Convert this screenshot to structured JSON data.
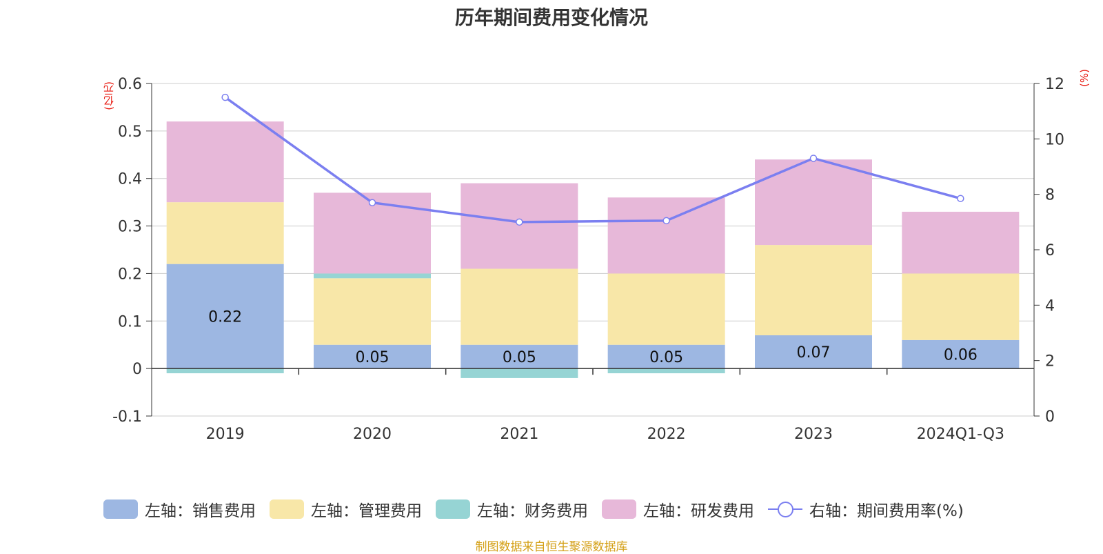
{
  "chart_data": {
    "type": "bar",
    "title": "历年期间费用变化情况",
    "categories": [
      "2019",
      "2020",
      "2021",
      "2022",
      "2023",
      "2024Q1-Q3"
    ],
    "series": [
      {
        "name": "左轴：销售费用",
        "axis": "left",
        "stack": true,
        "color": "#9db7e2",
        "values": [
          0.22,
          0.05,
          0.05,
          0.05,
          0.07,
          0.06
        ],
        "data_labels": [
          "0.22",
          "0.05",
          "0.05",
          "0.05",
          "0.07",
          "0.06"
        ]
      },
      {
        "name": "左轴：管理费用",
        "axis": "left",
        "stack": true,
        "color": "#f8e7a8",
        "values": [
          0.13,
          0.14,
          0.16,
          0.15,
          0.19,
          0.14
        ]
      },
      {
        "name": "左轴：财务费用",
        "axis": "left",
        "stack": true,
        "color": "#96d4d4",
        "values": [
          -0.01,
          0.01,
          -0.02,
          -0.01,
          0.0,
          0.0
        ]
      },
      {
        "name": "左轴：研发费用",
        "axis": "left",
        "stack": true,
        "color": "#e7b8d9",
        "values": [
          0.17,
          0.17,
          0.18,
          0.16,
          0.18,
          0.13
        ]
      },
      {
        "name": "右轴：期间费用率(%)",
        "axis": "right",
        "type": "line",
        "color": "#7b7ff0",
        "values": [
          11.5,
          7.7,
          7.0,
          7.05,
          9.3,
          7.85
        ]
      }
    ],
    "y_left": {
      "unit": "(亿元)",
      "ylim": [
        -0.1,
        0.6
      ],
      "ticks": [
        "-0.1",
        "0",
        "0.1",
        "0.2",
        "0.3",
        "0.4",
        "0.5",
        "0.6"
      ]
    },
    "y_right": {
      "unit": "(%)",
      "ylim": [
        0,
        12
      ],
      "ticks": [
        "0",
        "2",
        "4",
        "6",
        "8",
        "10",
        "12"
      ]
    },
    "grid": true,
    "legend_position": "bottom"
  },
  "source": "制图数据来自恒生聚源数据库"
}
